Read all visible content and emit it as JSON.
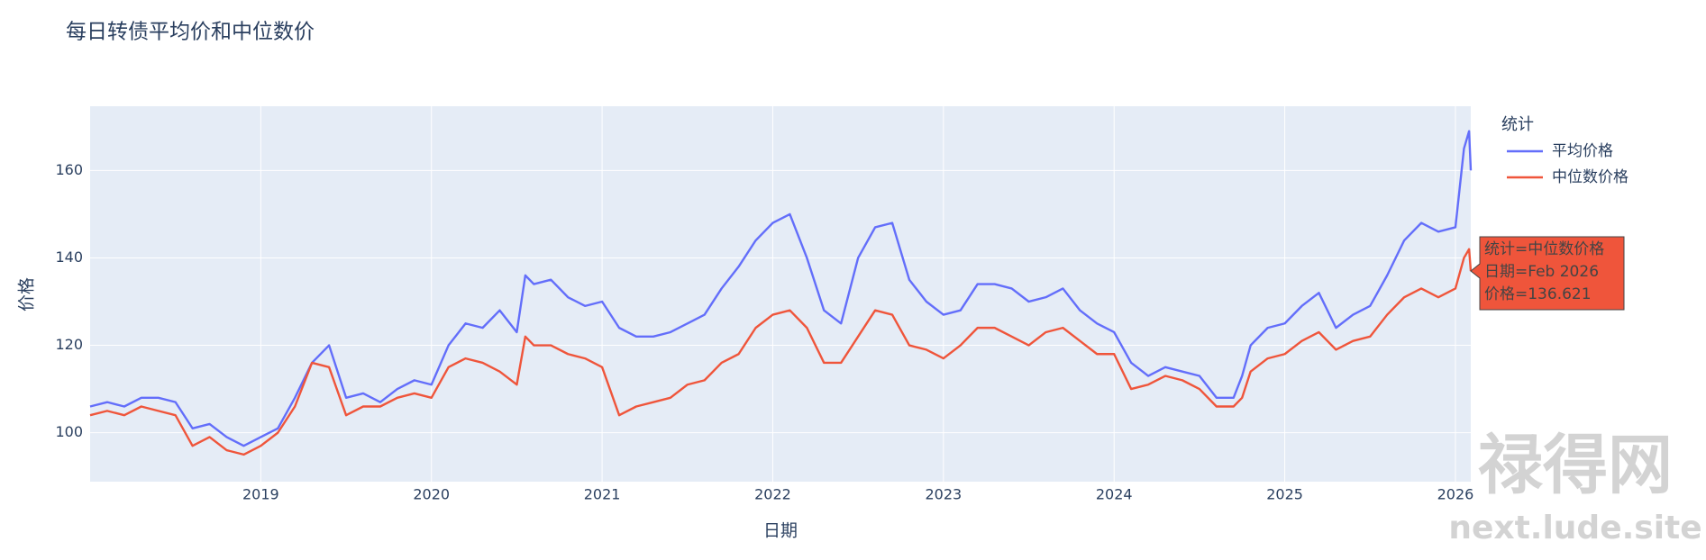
{
  "chart_data": {
    "type": "line",
    "title": "每日转债平均价和中位数价",
    "x_label": "日期",
    "y_label": "价格",
    "legend_title": "统计",
    "x": [
      2018.0,
      2018.1,
      2018.2,
      2018.3,
      2018.4,
      2018.5,
      2018.6,
      2018.7,
      2018.8,
      2018.9,
      2019.0,
      2019.1,
      2019.2,
      2019.3,
      2019.4,
      2019.5,
      2019.6,
      2019.7,
      2019.8,
      2019.9,
      2020.0,
      2020.1,
      2020.2,
      2020.3,
      2020.4,
      2020.5,
      2020.55,
      2020.6,
      2020.7,
      2020.8,
      2020.9,
      2021.0,
      2021.1,
      2021.2,
      2021.3,
      2021.4,
      2021.5,
      2021.6,
      2021.7,
      2021.8,
      2021.9,
      2022.0,
      2022.1,
      2022.2,
      2022.3,
      2022.4,
      2022.5,
      2022.6,
      2022.7,
      2022.8,
      2022.9,
      2023.0,
      2023.1,
      2023.2,
      2023.3,
      2023.4,
      2023.5,
      2023.6,
      2023.7,
      2023.8,
      2023.9,
      2024.0,
      2024.1,
      2024.2,
      2024.3,
      2024.4,
      2024.5,
      2024.6,
      2024.7,
      2024.75,
      2024.8,
      2024.9,
      2025.0,
      2025.1,
      2025.2,
      2025.3,
      2025.4,
      2025.5,
      2025.6,
      2025.7,
      2025.8,
      2025.9,
      2026.0,
      2026.05,
      2026.08,
      2026.09
    ],
    "series": [
      {
        "name": "平均价格",
        "color": "#636efa",
        "values": [
          106,
          107,
          106,
          108,
          108,
          107,
          101,
          102,
          99,
          97,
          99,
          101,
          108,
          116,
          120,
          108,
          109,
          107,
          110,
          112,
          111,
          120,
          125,
          124,
          128,
          123,
          136,
          134,
          135,
          131,
          129,
          130,
          124,
          122,
          122,
          123,
          125,
          127,
          133,
          138,
          144,
          148,
          150,
          140,
          128,
          125,
          140,
          147,
          148,
          135,
          130,
          127,
          128,
          134,
          134,
          133,
          130,
          131,
          133,
          128,
          125,
          123,
          116,
          113,
          115,
          114,
          113,
          108,
          108,
          113,
          120,
          124,
          125,
          129,
          132,
          124,
          127,
          129,
          136,
          144,
          148,
          146,
          147,
          165,
          169,
          160
        ]
      },
      {
        "name": "中位数价格",
        "color": "#ef553b",
        "values": [
          104,
          105,
          104,
          106,
          105,
          104,
          97,
          99,
          96,
          95,
          97,
          100,
          106,
          116,
          115,
          104,
          106,
          106,
          108,
          109,
          108,
          115,
          117,
          116,
          114,
          111,
          122,
          120,
          120,
          118,
          117,
          115,
          104,
          106,
          107,
          108,
          111,
          112,
          116,
          118,
          124,
          127,
          128,
          124,
          116,
          116,
          122,
          128,
          127,
          120,
          119,
          117,
          120,
          124,
          124,
          122,
          120,
          123,
          124,
          121,
          118,
          118,
          110,
          111,
          113,
          112,
          110,
          106,
          106,
          108,
          114,
          117,
          118,
          121,
          123,
          119,
          121,
          122,
          127,
          131,
          133,
          131,
          133,
          140,
          142,
          137
        ]
      }
    ],
    "xlim": [
      2018.0,
      2026.09
    ],
    "xticks": [
      2019,
      2020,
      2021,
      2022,
      2023,
      2024,
      2025,
      2026
    ],
    "ylim": [
      88.8,
      174.7
    ],
    "yticks": [
      100,
      120,
      140,
      160
    ],
    "grid": true,
    "hover_label": {
      "lines": [
        "统计=中位数价格",
        "日期=Feb 2026",
        "价格=136.621"
      ]
    },
    "watermark": {
      "text": "禄得网",
      "url": "next.lude.site"
    }
  }
}
